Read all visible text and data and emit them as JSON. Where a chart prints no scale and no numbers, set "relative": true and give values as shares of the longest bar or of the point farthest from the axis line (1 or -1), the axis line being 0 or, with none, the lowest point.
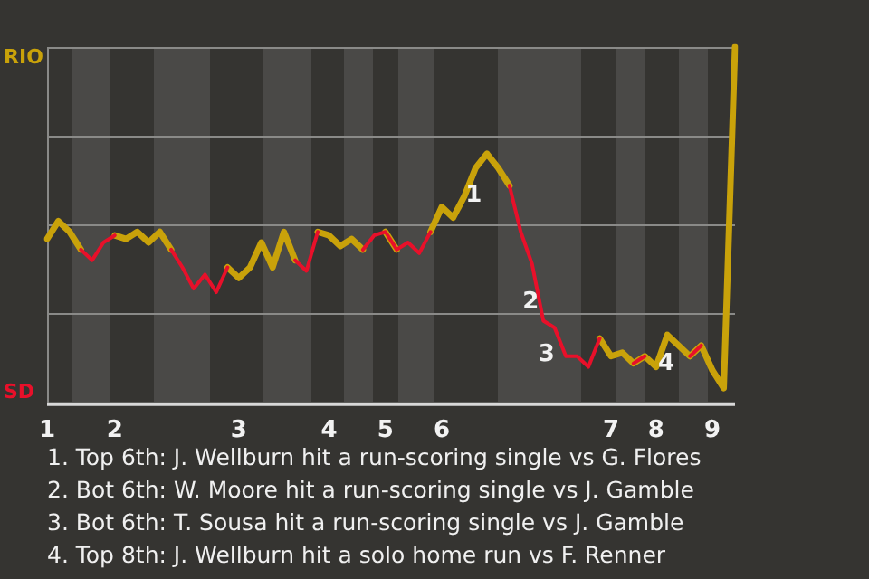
{
  "chart_data": {
    "type": "line",
    "relative": true,
    "categories": [
      "1",
      null,
      null,
      null,
      null,
      null,
      "2",
      null,
      null,
      null,
      null,
      null,
      null,
      null,
      null,
      null,
      null,
      "3",
      null,
      null,
      null,
      null,
      null,
      null,
      null,
      "4",
      null,
      null,
      null,
      null,
      "5",
      null,
      null,
      null,
      null,
      "6",
      null,
      null,
      null,
      null,
      null,
      null,
      null,
      null,
      null,
      null,
      null,
      null,
      null,
      null,
      "7",
      null,
      null,
      null,
      "8",
      null,
      null,
      null,
      null,
      "9",
      null,
      null
    ],
    "series": [
      {
        "color": "#e8102a",
        "values": [
          null,
          null,
          null,
          0.43,
          0.4,
          0.45,
          0.47,
          null,
          null,
          null,
          null,
          0.43,
          0.38,
          0.32,
          0.36,
          0.31,
          0.38,
          null,
          null,
          null,
          null,
          null,
          0.4,
          0.37,
          0.48,
          null,
          null,
          null,
          0.43,
          0.47,
          0.48,
          0.43,
          0.45,
          0.42,
          0.48,
          null,
          null,
          null,
          null,
          null,
          null,
          0.61,
          0.48,
          0.39,
          0.23,
          0.21,
          0.13,
          0.13,
          0.1,
          0.18,
          null,
          null,
          0.11,
          0.13,
          null,
          null,
          null,
          0.13,
          0.16,
          null,
          null,
          null
        ]
      },
      {
        "color": "#c9a20a",
        "values": [
          0.46,
          0.51,
          0.48,
          0.43,
          null,
          null,
          0.47,
          0.46,
          0.48,
          0.45,
          0.48,
          0.43,
          null,
          null,
          null,
          null,
          0.38,
          0.35,
          0.38,
          0.45,
          0.38,
          0.48,
          0.4,
          null,
          0.48,
          0.47,
          0.44,
          0.46,
          0.43,
          null,
          0.48,
          0.43,
          null,
          null,
          0.48,
          0.55,
          0.52,
          0.58,
          0.66,
          0.7,
          0.66,
          0.61,
          null,
          null,
          null,
          null,
          null,
          null,
          null,
          0.18,
          0.13,
          0.14,
          0.11,
          0.13,
          0.1,
          0.19,
          0.16,
          0.13,
          0.16,
          0.09,
          0.04,
          1.0
        ]
      }
    ],
    "grid": "y",
    "marker": "none",
    "annotations": [
      "RIO",
      "SD",
      "1",
      "2",
      "3",
      "4",
      "1. Top 6th: J. Wellburn hit a run-scoring single vs G. Flores",
      "2. Bot 6th: W. Moore hit a run-scoring single vs J. Gamble",
      "3. Bot 6th: T. Sousa hit a run-scoring single vs J. Gamble",
      "4. Top 8th: J. Wellburn hit a solo home run vs F. Renner"
    ]
  }
}
